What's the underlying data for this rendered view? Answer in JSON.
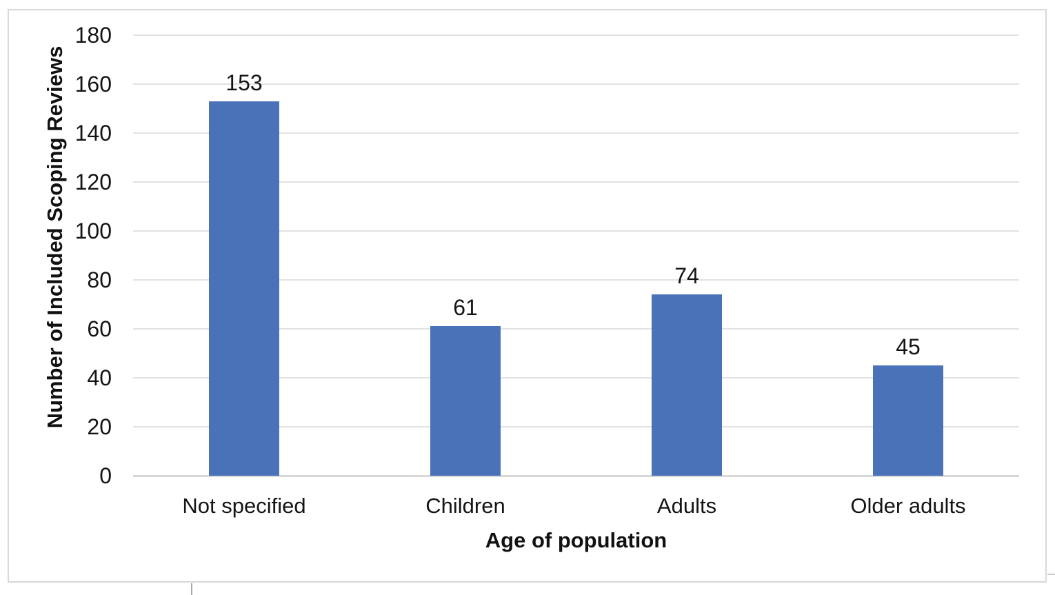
{
  "chart_data": {
    "type": "bar",
    "title": "",
    "categories": [
      "Not specified",
      "Children",
      "Adults",
      "Older adults"
    ],
    "values": [
      153,
      61,
      74,
      45
    ],
    "data_labels_shown": true,
    "xlabel": "Age of population",
    "ylabel": "Number of Included Scoping Reviews",
    "ylim": [
      0,
      180
    ],
    "ytick_step": 20,
    "yticks": [
      0,
      20,
      40,
      60,
      80,
      100,
      120,
      140,
      160,
      180
    ],
    "legend_position": "none",
    "grid": "horizontal",
    "colors": {
      "bar": "#4a72b8",
      "gridline": "#e2e2e2",
      "axis_baseline": "#d8d8d8",
      "chart_border": "#d8d8d8",
      "text": "#141414"
    }
  }
}
